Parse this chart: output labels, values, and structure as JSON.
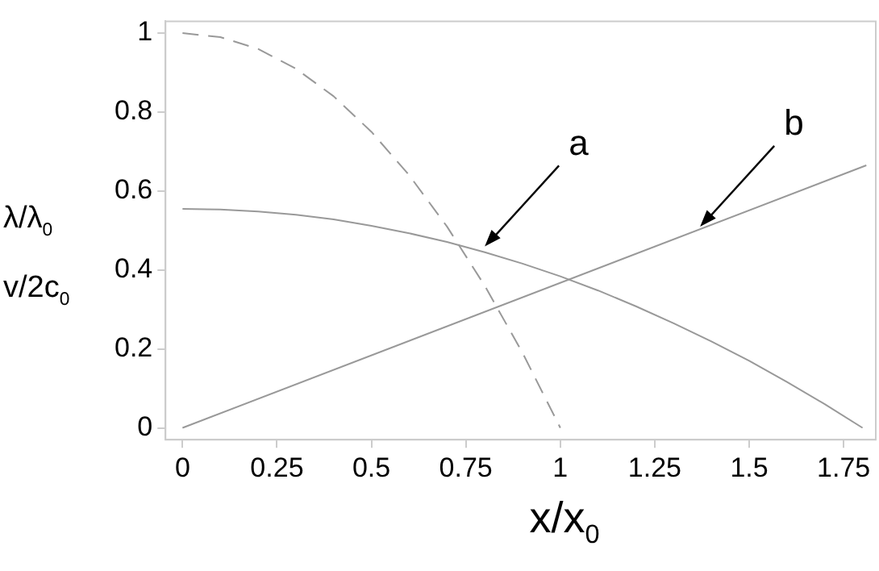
{
  "chart_data": {
    "type": "line",
    "xlabel": "x/x$_{0}$",
    "ylabel": "λ/λ$_{0}$\nv/2c$_{0}$",
    "xlim": [
      -0.045,
      1.835
    ],
    "ylim": [
      -0.03,
      1.03
    ],
    "xticks": [
      0,
      0.25,
      0.5,
      0.75,
      1,
      1.25,
      1.5,
      1.75
    ],
    "yticks": [
      0,
      0.2,
      0.4,
      0.6,
      0.8,
      1
    ],
    "grid": false,
    "legend": false,
    "marker": "none",
    "series": [
      {
        "color": "#999999",
        "line_style": "dashed",
        "x": [
          0,
          0.1,
          0.2,
          0.3,
          0.4,
          0.5,
          0.6,
          0.7,
          0.8,
          0.9,
          1.0
        ],
        "values": [
          1,
          0.99,
          0.96,
          0.91,
          0.84,
          0.75,
          0.64,
          0.51,
          0.36,
          0.19,
          0
        ]
      },
      {
        "color": "#999999",
        "line_style": "solid",
        "x": [
          0,
          0.1,
          0.2,
          0.3,
          0.4,
          0.5,
          0.6,
          0.7,
          0.8,
          0.9,
          1.0,
          1.1,
          1.2,
          1.3,
          1.4,
          1.5,
          1.6,
          1.7,
          1.8
        ],
        "values": [
          0.555,
          0.553,
          0.548,
          0.54,
          0.528,
          0.512,
          0.493,
          0.471,
          0.445,
          0.416,
          0.384,
          0.348,
          0.308,
          0.265,
          0.219,
          0.17,
          0.116,
          0.06,
          0
        ]
      },
      {
        "color": "#999999",
        "line_style": "solid",
        "x": [
          0,
          1.81
        ],
        "values": [
          0,
          0.665
        ]
      }
    ],
    "annotations": [
      {
        "text": "a",
        "x": 0.8,
        "y": 0.46
      },
      {
        "text": "b",
        "x": 1.37,
        "y": 0.51
      }
    ]
  }
}
